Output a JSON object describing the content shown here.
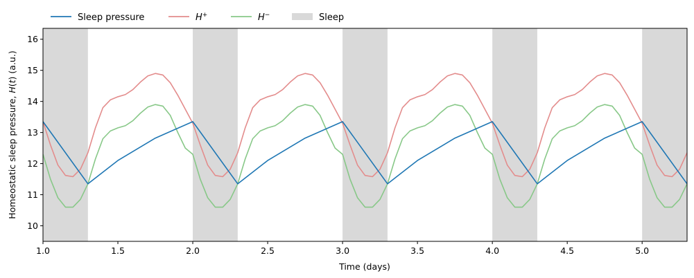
{
  "chart_data": {
    "type": "line",
    "xlabel": "Time (days)",
    "ylabel": "Homeostatic sleep pressure, H(t) (a.u.)",
    "xlim": [
      1.0,
      5.3
    ],
    "ylim": [
      9.5,
      16.35
    ],
    "xticks": [
      "1.0",
      "1.5",
      "2.0",
      "2.5",
      "3.0",
      "3.5",
      "4.0",
      "4.5",
      "5.0"
    ],
    "xtick_values": [
      1.0,
      1.5,
      2.0,
      2.5,
      3.0,
      3.5,
      4.0,
      4.5,
      5.0
    ],
    "yticks": [
      "10",
      "11",
      "12",
      "13",
      "14",
      "15",
      "16"
    ],
    "ytick_values": [
      10,
      11,
      12,
      13,
      14,
      15,
      16
    ],
    "grid": false,
    "legend_position": "top-left, above plot",
    "sleep_bands": [
      [
        1.0,
        1.3
      ],
      [
        2.0,
        2.3
      ],
      [
        3.0,
        3.3
      ],
      [
        4.0,
        4.3
      ],
      [
        5.0,
        5.3
      ]
    ],
    "series": [
      {
        "name": "Sleep pressure",
        "color": "#1f77b4",
        "x": [
          1.0,
          1.3,
          1.5,
          1.75,
          2.0,
          2.3,
          2.5,
          2.75,
          3.0,
          3.3,
          3.5,
          3.75,
          4.0,
          4.3,
          4.5,
          4.75,
          5.0,
          5.3
        ],
        "y": [
          13.35,
          11.35,
          12.1,
          12.82,
          13.35,
          11.35,
          12.1,
          12.82,
          13.35,
          11.35,
          12.1,
          12.82,
          13.35,
          11.35,
          12.1,
          12.82,
          13.35,
          11.35
        ]
      },
      {
        "name": "H+",
        "color": "#e38c8c",
        "x": [
          1.0,
          1.05,
          1.1,
          1.15,
          1.2,
          1.25,
          1.3,
          1.35,
          1.4,
          1.45,
          1.5,
          1.55,
          1.6,
          1.65,
          1.7,
          1.75,
          1.8,
          1.85,
          1.9,
          1.95,
          2.0,
          2.05,
          2.1,
          2.15,
          2.2,
          2.25,
          2.3,
          2.35,
          2.4,
          2.45,
          2.5,
          2.55,
          2.6,
          2.65,
          2.7,
          2.75,
          2.8,
          2.85,
          2.9,
          2.95,
          3.0,
          3.05,
          3.1,
          3.15,
          3.2,
          3.25,
          3.3,
          3.35,
          3.4,
          3.45,
          3.5,
          3.55,
          3.6,
          3.65,
          3.7,
          3.75,
          3.8,
          3.85,
          3.9,
          3.95,
          4.0,
          4.05,
          4.1,
          4.15,
          4.2,
          4.25,
          4.3,
          4.35,
          4.4,
          4.45,
          4.5,
          4.55,
          4.6,
          4.65,
          4.7,
          4.75,
          4.8,
          4.85,
          4.9,
          4.95,
          5.0,
          5.05,
          5.1,
          5.15,
          5.2,
          5.25,
          5.3
        ],
        "y": [
          13.35,
          12.6,
          11.95,
          11.62,
          11.58,
          11.82,
          12.35,
          13.15,
          13.8,
          14.05,
          14.15,
          14.22,
          14.38,
          14.62,
          14.82,
          14.9,
          14.85,
          14.6,
          14.2,
          13.75,
          13.3,
          12.6,
          11.95,
          11.62,
          11.58,
          11.82,
          12.35,
          13.15,
          13.8,
          14.05,
          14.15,
          14.22,
          14.38,
          14.62,
          14.82,
          14.9,
          14.85,
          14.6,
          14.2,
          13.75,
          13.3,
          12.6,
          11.95,
          11.62,
          11.58,
          11.82,
          12.35,
          13.15,
          13.8,
          14.05,
          14.15,
          14.22,
          14.38,
          14.62,
          14.82,
          14.9,
          14.85,
          14.6,
          14.2,
          13.75,
          13.3,
          12.6,
          11.95,
          11.62,
          11.58,
          11.82,
          12.35,
          13.15,
          13.8,
          14.05,
          14.15,
          14.22,
          14.38,
          14.62,
          14.82,
          14.9,
          14.85,
          14.6,
          14.2,
          13.75,
          13.3,
          12.6,
          11.95,
          11.62,
          11.58,
          11.82,
          12.35
        ]
      },
      {
        "name": "H−",
        "color": "#88c888",
        "x": [
          1.0,
          1.05,
          1.1,
          1.15,
          1.2,
          1.25,
          1.3,
          1.35,
          1.4,
          1.45,
          1.5,
          1.55,
          1.6,
          1.65,
          1.7,
          1.75,
          1.8,
          1.85,
          1.9,
          1.95,
          2.0,
          2.05,
          2.1,
          2.15,
          2.2,
          2.25,
          2.3,
          2.35,
          2.4,
          2.45,
          2.5,
          2.55,
          2.6,
          2.65,
          2.7,
          2.75,
          2.8,
          2.85,
          2.9,
          2.95,
          3.0,
          3.05,
          3.1,
          3.15,
          3.2,
          3.25,
          3.3,
          3.35,
          3.4,
          3.45,
          3.5,
          3.55,
          3.6,
          3.65,
          3.7,
          3.75,
          3.8,
          3.85,
          3.9,
          3.95,
          4.0,
          4.05,
          4.1,
          4.15,
          4.2,
          4.25,
          4.3,
          4.35,
          4.4,
          4.45,
          4.5,
          4.55,
          4.6,
          4.65,
          4.7,
          4.75,
          4.8,
          4.85,
          4.9,
          4.95,
          5.0,
          5.05,
          5.1,
          5.15,
          5.2,
          5.25,
          5.3
        ],
        "y": [
          12.3,
          11.5,
          10.9,
          10.6,
          10.6,
          10.85,
          11.35,
          12.15,
          12.8,
          13.05,
          13.15,
          13.22,
          13.38,
          13.62,
          13.82,
          13.9,
          13.85,
          13.55,
          13.0,
          12.5,
          12.3,
          11.5,
          10.9,
          10.6,
          10.6,
          10.85,
          11.35,
          12.15,
          12.8,
          13.05,
          13.15,
          13.22,
          13.38,
          13.62,
          13.82,
          13.9,
          13.85,
          13.55,
          13.0,
          12.5,
          12.3,
          11.5,
          10.9,
          10.6,
          10.6,
          10.85,
          11.35,
          12.15,
          12.8,
          13.05,
          13.15,
          13.22,
          13.38,
          13.62,
          13.82,
          13.9,
          13.85,
          13.55,
          13.0,
          12.5,
          12.3,
          11.5,
          10.9,
          10.6,
          10.6,
          10.85,
          11.35,
          12.15,
          12.8,
          13.05,
          13.15,
          13.22,
          13.38,
          13.62,
          13.82,
          13.9,
          13.85,
          13.55,
          13.0,
          12.5,
          12.3,
          11.5,
          10.9,
          10.6,
          10.6,
          10.85,
          11.35
        ]
      }
    ],
    "legend": [
      {
        "label": "Sleep pressure",
        "kind": "line",
        "color": "#1f77b4"
      },
      {
        "label": "H+",
        "kind": "line",
        "color": "#e38c8c"
      },
      {
        "label": "H−",
        "kind": "line",
        "color": "#88c888"
      },
      {
        "label": "Sleep",
        "kind": "patch",
        "color": "#d9d9d9"
      }
    ]
  }
}
